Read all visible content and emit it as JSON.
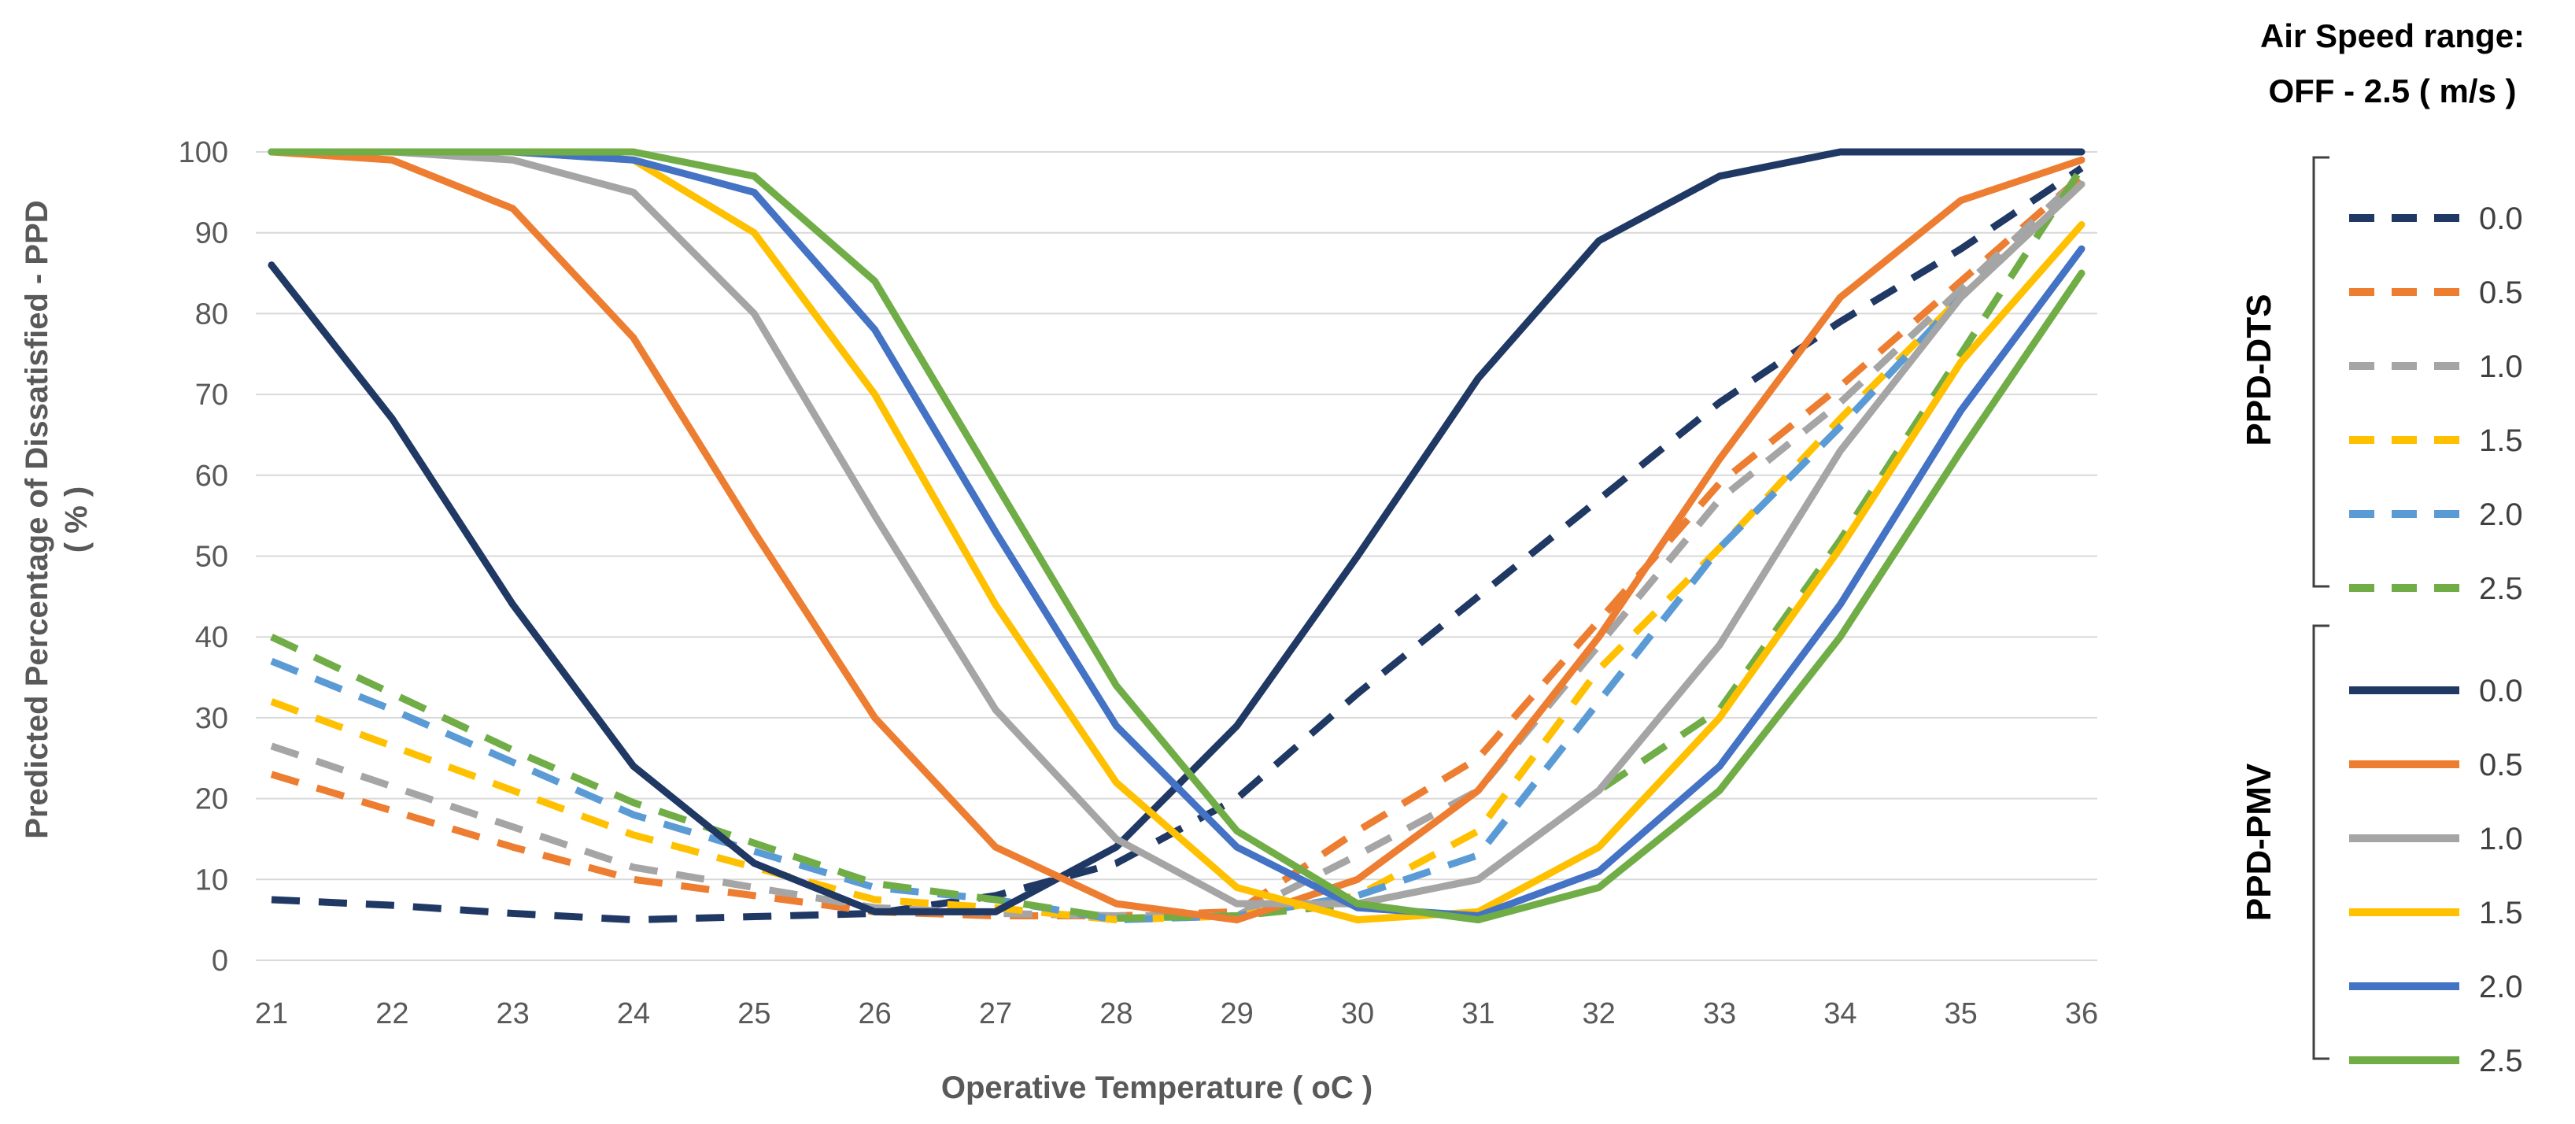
{
  "chart_data": {
    "type": "line",
    "xlabel": "Operative Temperature ( oC )",
    "ylabel_line1": "Predicted Percentage of Dissatisfied - PPD",
    "ylabel_line2": "( % )",
    "x": [
      21,
      22,
      23,
      24,
      25,
      26,
      27,
      28,
      29,
      30,
      31,
      32,
      33,
      34,
      35,
      36
    ],
    "xlim": [
      21,
      36
    ],
    "ylim": [
      0,
      100
    ],
    "yticks": [
      0,
      10,
      20,
      30,
      40,
      50,
      60,
      70,
      80,
      90,
      100
    ],
    "grid": true,
    "legend_position": "right",
    "legend_title_line1": "Air Speed range:",
    "legend_title_line2": "OFF - 2.5 ( m/s )",
    "groups": [
      {
        "name": "PPD-DTS",
        "style": "dashed",
        "series": [
          {
            "name": "0.0",
            "color": "#203864",
            "values": [
              7.5,
              6.8,
              5.8,
              5,
              5.4,
              5.8,
              8,
              12,
              20,
              33,
              45,
              57,
              69,
              79,
              88,
              98
            ]
          },
          {
            "name": "0.5",
            "color": "#ed7d31",
            "values": [
              23,
              18.5,
              14,
              10,
              8,
              6,
              5.5,
              5.5,
              6,
              16,
              25,
              42,
              59,
              71,
              84,
              97
            ]
          },
          {
            "name": "1.0",
            "color": "#a5a5a5",
            "values": [
              26.5,
              21.5,
              16.5,
              11.5,
              9,
              6.5,
              5.8,
              5.5,
              5.5,
              13,
              21,
              39,
              57,
              69,
              83,
              97
            ]
          },
          {
            "name": "1.5",
            "color": "#ffc000",
            "values": [
              32,
              26.5,
              21,
              15.5,
              11.5,
              7.5,
              6.5,
              5,
              5.5,
              8,
              16,
              36,
              51,
              67,
              82,
              96
            ]
          },
          {
            "name": "2.0",
            "color": "#5b9bd5",
            "values": [
              37,
              31,
              24.5,
              18,
              13.5,
              9,
              7.5,
              5,
              5.5,
              8,
              13,
              32,
              51,
              66,
              82,
              96
            ]
          },
          {
            "name": "2.5",
            "color": "#70ad47",
            "values": [
              40,
              33,
              26,
              19.5,
              14.5,
              9.5,
              7.5,
              5.2,
              5.5,
              7,
              10,
              21,
              31,
              52,
              75,
              98
            ]
          }
        ]
      },
      {
        "name": "PPD-PMV",
        "style": "solid",
        "series": [
          {
            "name": "0.0",
            "color": "#203864",
            "values": [
              86,
              67,
              44,
              24,
              12,
              6,
              6,
              14,
              29,
              50,
              72,
              89,
              97,
              100,
              100,
              100
            ]
          },
          {
            "name": "0.5",
            "color": "#ed7d31",
            "values": [
              100,
              99,
              93,
              77,
              53,
              30,
              14,
              7,
              5,
              10,
              21,
              40,
              62,
              82,
              94,
              99
            ]
          },
          {
            "name": "1.0",
            "color": "#a5a5a5",
            "values": [
              100,
              100,
              99,
              95,
              80,
              55,
              31,
              15,
              7,
              7,
              10,
              21,
              39,
              63,
              82,
              96
            ]
          },
          {
            "name": "1.5",
            "color": "#ffc000",
            "values": [
              100,
              100,
              100,
              99,
              90,
              70,
              44,
              22,
              9,
              5,
              6,
              14,
              30,
              51,
              74,
              91
            ]
          },
          {
            "name": "2.0",
            "color": "#4472c4",
            "values": [
              100,
              100,
              100,
              99,
              95,
              78,
              53,
              29,
              14,
              6.5,
              5.5,
              11,
              24,
              44,
              68,
              88
            ]
          },
          {
            "name": "2.5",
            "color": "#70ad47",
            "values": [
              100,
              100,
              100,
              100,
              97,
              84,
              59,
              34,
              16,
              7,
              5,
              9,
              21,
              40,
              63,
              85
            ]
          }
        ]
      }
    ]
  }
}
